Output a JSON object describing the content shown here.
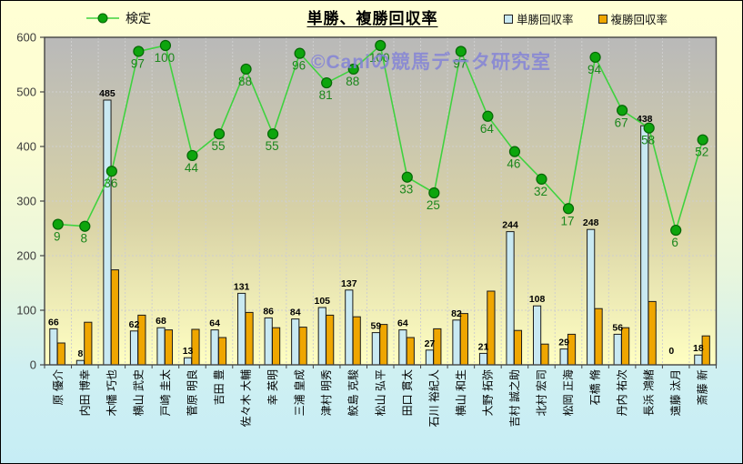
{
  "title": "単勝、複勝回収率",
  "watermark": "©Caniの競馬データ研究室",
  "legend": {
    "kentei": "検定",
    "tansho": "単勝回収率",
    "fukusho": "複勝回収率"
  },
  "colors": {
    "tansho_bar": "#C9E9F2",
    "fukusho_bar": "#EFA600",
    "kentei_line": "#3FD23F",
    "kentei_marker": "#0DA50D",
    "kentei_marker_edge": "#056605",
    "kentei_label": "#1C871C",
    "bar_label": "#000000",
    "axis_text": "#3B3B3B",
    "watermark_text": "#8080D8",
    "plot_bg_top": "#B9B9B9",
    "plot_bg_mid": "#D8D2A6",
    "plot_bg_bottom": "#FFFFC2",
    "grid": "#CFCFCF",
    "border": "#444444"
  },
  "chart_data": {
    "type": "combo-bar-line",
    "title": "単勝、複勝回収率",
    "categories": [
      "原 優介",
      "内田 博幸",
      "木幡 巧也",
      "横山 武史",
      "戸崎 圭太",
      "菅原 明良",
      "吉田 豊",
      "佐々木 大輔",
      "幸 英明",
      "三浦 皇成",
      "津村 明秀",
      "鮫島 克駿",
      "松山 弘平",
      "田口 貫太",
      "石川 裕紀人",
      "横山 和生",
      "大野 拓弥",
      "吉村 誠之助",
      "北村 宏司",
      "松岡 正海",
      "石橋 脩",
      "丹内 祐次",
      "長浜 鴻緒",
      "遠藤 汰月",
      "斎藤 新"
    ],
    "series": [
      {
        "name": "検定",
        "type": "line",
        "axis": "secondary-hidden",
        "values": [
          9,
          8,
          36,
          97,
          100,
          44,
          55,
          88,
          55,
          96,
          81,
          88,
          100,
          33,
          25,
          97,
          64,
          46,
          32,
          17,
          94,
          67,
          58,
          6,
          52
        ],
        "data_labels": true
      },
      {
        "name": "単勝回収率",
        "type": "bar",
        "values": [
          66,
          8,
          485,
          62,
          68,
          13,
          64,
          131,
          86,
          84,
          105,
          137,
          59,
          64,
          27,
          82,
          21,
          244,
          108,
          29,
          248,
          56,
          438,
          0,
          18
        ],
        "data_labels": true
      },
      {
        "name": "複勝回収率",
        "type": "bar",
        "values": [
          40,
          78,
          174,
          91,
          64,
          65,
          50,
          96,
          68,
          69,
          91,
          88,
          74,
          50,
          66,
          94,
          135,
          63,
          38,
          56,
          103,
          68,
          116,
          0,
          53
        ],
        "data_labels": false
      }
    ],
    "ylim": [
      0,
      600
    ],
    "y_ticks": [
      0,
      100,
      200,
      300,
      400,
      500,
      600
    ],
    "secondary_axis_mapping": {
      "primary_equiv_at_value_0": 225,
      "primary_equiv_per_unit": 3.6
    },
    "grid": true,
    "legend_position": "top"
  }
}
